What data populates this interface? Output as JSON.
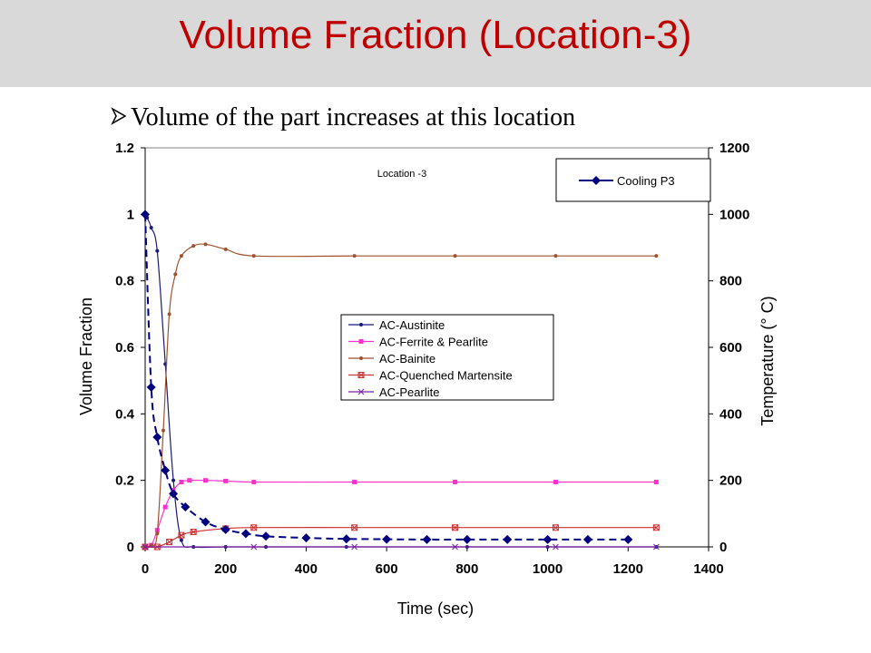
{
  "slide": {
    "title": "Volume Fraction (Location-3)",
    "bullet": "Volume of the part increases at this location",
    "bullet_icon": "arrow-bullet-icon"
  },
  "chart_data": {
    "type": "line",
    "title": "Location -3",
    "xlabel": "Time (sec)",
    "ylabel": "Volume Fraction",
    "y2label": "Temperature (° C)",
    "xlim": [
      0,
      1400
    ],
    "ylim": [
      0,
      1.2
    ],
    "y2lim": [
      0,
      1200
    ],
    "xticks": [
      "0",
      "200",
      "400",
      "600",
      "800",
      "1000",
      "1200",
      "1400"
    ],
    "yticks": [
      "0",
      "0.2",
      "0.4",
      "0.6",
      "0.8",
      "1",
      "1.2"
    ],
    "y2ticks": [
      "0",
      "200",
      "400",
      "600",
      "800",
      "1000",
      "1200"
    ],
    "grid": false,
    "legend_main_position": "center",
    "legend_temp_position": "top-right",
    "series": [
      {
        "name": "AC-Austinite",
        "axis": "left",
        "color": "#1a1a7a",
        "marker": "dot",
        "x": [
          0,
          5,
          15,
          30,
          50,
          70,
          90,
          120,
          200,
          300,
          500,
          800,
          1000,
          1270
        ],
        "y": [
          1.0,
          0.99,
          0.96,
          0.89,
          0.55,
          0.2,
          0.02,
          0.0,
          0.0,
          0.0,
          0.0,
          0.0,
          0.0,
          0.0
        ]
      },
      {
        "name": "AC-Ferrite & Pearlite",
        "axis": "left",
        "color": "#ff33cc",
        "marker": "square",
        "x": [
          0,
          15,
          30,
          50,
          70,
          90,
          110,
          150,
          200,
          270,
          520,
          770,
          1020,
          1270
        ],
        "y": [
          0.0,
          0.005,
          0.05,
          0.12,
          0.17,
          0.195,
          0.2,
          0.2,
          0.198,
          0.195,
          0.195,
          0.195,
          0.195,
          0.195
        ]
      },
      {
        "name": "AC-Bainite",
        "axis": "left",
        "color": "#a0522d",
        "marker": "dot",
        "x": [
          0,
          15,
          30,
          45,
          60,
          75,
          90,
          120,
          150,
          200,
          270,
          520,
          770,
          1020,
          1270
        ],
        "y": [
          0.0,
          0.005,
          0.04,
          0.35,
          0.7,
          0.82,
          0.875,
          0.905,
          0.91,
          0.895,
          0.875,
          0.875,
          0.875,
          0.875,
          0.875
        ]
      },
      {
        "name": "AC-Quenched Martensite",
        "axis": "left",
        "color": "#cc3333",
        "marker": "square-x",
        "x": [
          0,
          30,
          60,
          90,
          120,
          200,
          270,
          520,
          770,
          1020,
          1270
        ],
        "y": [
          0.0,
          0.0,
          0.015,
          0.035,
          0.045,
          0.055,
          0.058,
          0.058,
          0.058,
          0.058,
          0.058
        ]
      },
      {
        "name": "AC-Pearlite",
        "axis": "left",
        "color": "#7a1fa2",
        "marker": "star",
        "x": [
          0,
          270,
          520,
          770,
          1020,
          1270
        ],
        "y": [
          0.0,
          0.0,
          0.0,
          0.0,
          0.0,
          0.0
        ]
      },
      {
        "name": "Cooling P3",
        "axis": "right",
        "color": "#000080",
        "marker": "diamond",
        "dashed": true,
        "x": [
          0,
          15,
          30,
          50,
          70,
          100,
          150,
          200,
          250,
          300,
          400,
          500,
          600,
          700,
          800,
          900,
          1000,
          1100,
          1200
        ],
        "y": [
          1000,
          480,
          330,
          230,
          160,
          120,
          75,
          52,
          40,
          32,
          27,
          24,
          23,
          22,
          22,
          22,
          22,
          22,
          22
        ]
      }
    ]
  }
}
